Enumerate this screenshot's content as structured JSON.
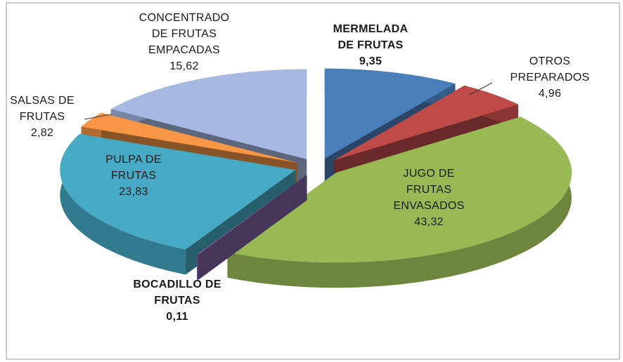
{
  "chart_data": {
    "type": "pie",
    "categories": [
      "MERMELADA\nDE FRUTAS",
      "OTROS\nPREPARADOS",
      "JUGO DE\nFRUTAS\nENVASADOS",
      "BOCADILLO DE\nFRUTAS",
      "PULPA DE\nFRUTAS",
      "SALSAS DE\nFRUTAS",
      "CONCENTRADO\nDE FRUTAS\nEMPACADAS"
    ],
    "values": [
      9.35,
      4.96,
      43.32,
      0.11,
      23.83,
      2.82,
      15.62
    ],
    "value_labels": [
      "9,35",
      "4,96",
      "43,32",
      "0,11",
      "23,83",
      "2,82",
      "15,62"
    ],
    "colors": [
      "#4a7ebb",
      "#be4b48",
      "#98b954",
      "#7d60a0",
      "#46aac5",
      "#f79646",
      "#a7b9e3"
    ]
  }
}
